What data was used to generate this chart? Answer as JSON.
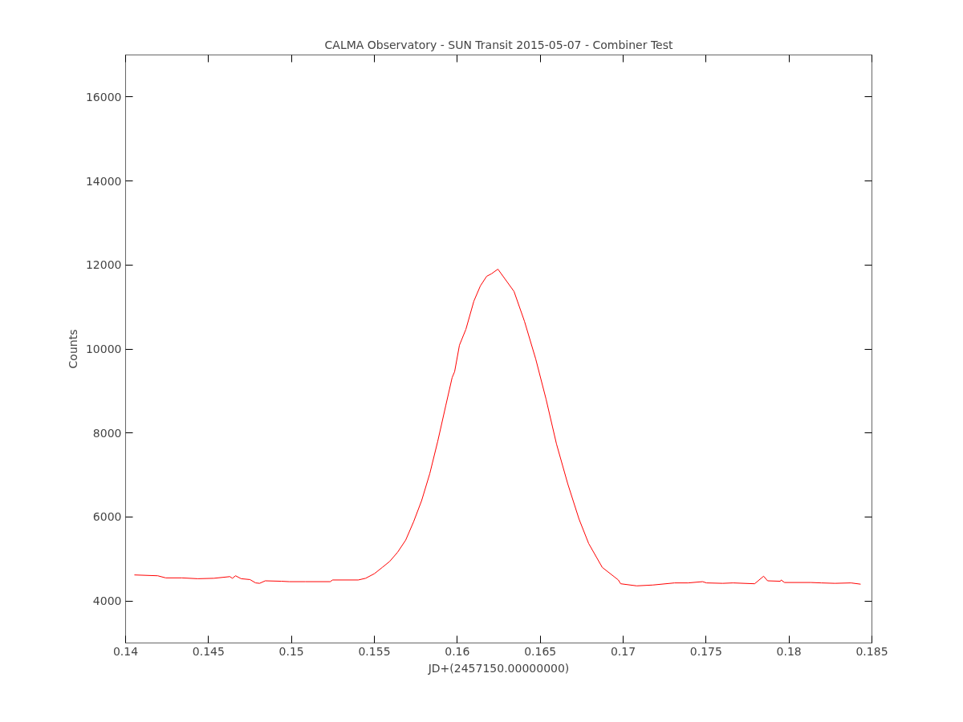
{
  "chart_data": {
    "type": "line",
    "title": "CALMA Observatory - SUN Transit 2015-05-07 - Combiner Test",
    "xlabel": "JD+(2457150.00000000)",
    "ylabel": "Counts",
    "xlim": [
      0.14,
      0.185
    ],
    "ylim": [
      3000,
      17000
    ],
    "xticks": [
      0.14,
      0.145,
      0.15,
      0.155,
      0.16,
      0.165,
      0.17,
      0.175,
      0.18,
      0.185
    ],
    "yticks": [
      4000,
      6000,
      8000,
      10000,
      12000,
      14000,
      16000
    ],
    "grid": false,
    "series": [
      {
        "color": "#ff0000",
        "x": [
          0.14053,
          0.14194,
          0.14242,
          0.14339,
          0.14435,
          0.14532,
          0.14629,
          0.14644,
          0.14663,
          0.14697,
          0.1475,
          0.14784,
          0.14808,
          0.14842,
          0.14939,
          0.14987,
          0.15084,
          0.15234,
          0.15248,
          0.15403,
          0.15447,
          0.155,
          0.15548,
          0.15592,
          0.1564,
          0.15689,
          0.15737,
          0.15785,
          0.15834,
          0.15882,
          0.15931,
          0.15969,
          0.15984,
          0.16013,
          0.16052,
          0.161,
          0.16139,
          0.16177,
          0.16206,
          0.16245,
          0.16342,
          0.16405,
          0.16473,
          0.16535,
          0.16598,
          0.16666,
          0.16734,
          0.16792,
          0.16874,
          0.16971,
          0.16985,
          0.17082,
          0.17179,
          0.1731,
          0.17392,
          0.17479,
          0.17503,
          0.176,
          0.17663,
          0.17793,
          0.17847,
          0.17871,
          0.17948,
          0.17953,
          0.17973,
          0.18132,
          0.18195,
          0.18277,
          0.18374,
          0.18432
        ],
        "values": [
          4620,
          4600,
          4550,
          4550,
          4530,
          4540,
          4580,
          4540,
          4600,
          4530,
          4510,
          4430,
          4420,
          4480,
          4470,
          4460,
          4460,
          4460,
          4500,
          4500,
          4540,
          4650,
          4800,
          4940,
          5160,
          5450,
          5890,
          6390,
          7030,
          7800,
          8660,
          9320,
          9460,
          10090,
          10470,
          11140,
          11500,
          11730,
          11790,
          11900,
          11370,
          10660,
          9760,
          8810,
          7740,
          6790,
          5950,
          5370,
          4800,
          4500,
          4410,
          4360,
          4380,
          4430,
          4430,
          4460,
          4430,
          4420,
          4430,
          4410,
          4590,
          4480,
          4470,
          4500,
          4440,
          4440,
          4430,
          4420,
          4430,
          4400
        ]
      }
    ]
  }
}
